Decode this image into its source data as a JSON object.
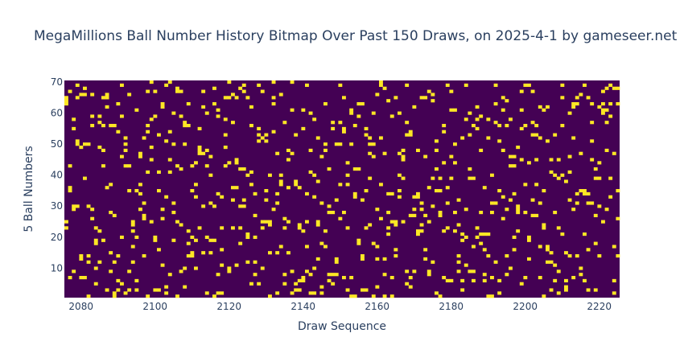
{
  "chart_data": {
    "type": "heatmap",
    "title": "MegaMillions Ball Number History Bitmap Over Past 150 Draws, on 2025-4-1 by gameseer.net",
    "xlabel": "Draw Sequence",
    "ylabel": "5 Ball Numbers",
    "xlim": [
      2075.5,
      2225.5
    ],
    "ylim": [
      0.5,
      70.5
    ],
    "x_range": [
      2076,
      2225
    ],
    "y_range": [
      1,
      70
    ],
    "x_ticks": [
      2080,
      2100,
      2120,
      2140,
      2160,
      2180,
      2200,
      2220
    ],
    "y_ticks": [
      10,
      20,
      30,
      40,
      50,
      60,
      70
    ],
    "balls_per_draw": 5,
    "value_range": [
      0,
      1
    ],
    "colorscale": {
      "0": "#440154",
      "1": "#fde725"
    },
    "grid": false,
    "legend": "none"
  }
}
